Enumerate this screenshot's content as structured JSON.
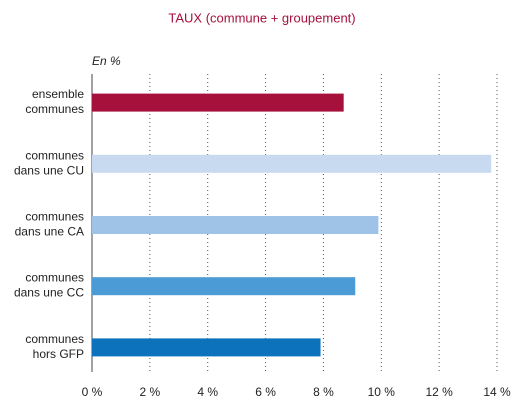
{
  "chart_data": {
    "type": "hbar",
    "title": "TAUX (commune + groupement)",
    "axis_label": "En %",
    "categories": [
      "ensemble\ncommunes",
      "communes\ndans une CU",
      "communes\ndans une CA",
      "communes\ndans une CC",
      "communes\nhors GFP"
    ],
    "values": [
      8.7,
      13.8,
      9.9,
      9.1,
      7.9
    ],
    "colors": [
      "#a6113c",
      "#c8daf0",
      "#9fc2e7",
      "#4b9bd7",
      "#0b72bb"
    ],
    "xlim": [
      0,
      14
    ],
    "xticks": [
      {
        "value": 0,
        "label": "0 %"
      },
      {
        "value": 2,
        "label": "2 %"
      },
      {
        "value": 4,
        "label": "4 %"
      },
      {
        "value": 6,
        "label": "6 %"
      },
      {
        "value": 8,
        "label": "8 %"
      },
      {
        "value": 10,
        "label": "10 %"
      },
      {
        "value": 12,
        "label": "12 %"
      },
      {
        "value": 14,
        "label": "14 %"
      }
    ],
    "grid": true
  }
}
